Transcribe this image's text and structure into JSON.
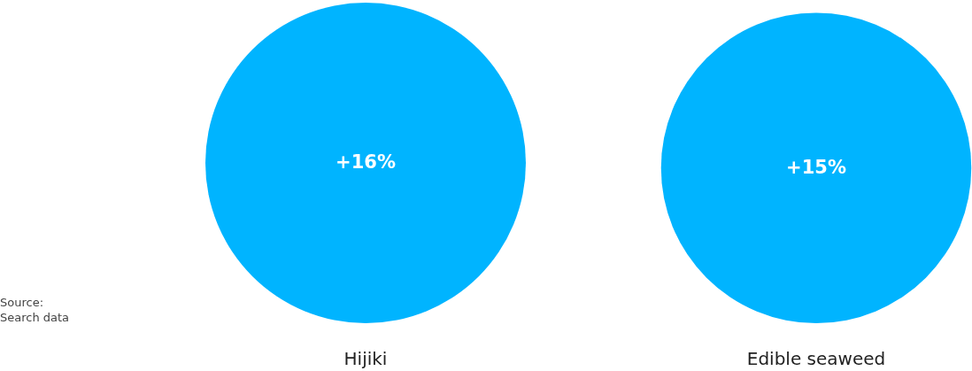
{
  "chart_data": {
    "type": "other",
    "categories": [
      "Hijiki",
      "Edible seaweed"
    ],
    "values": [
      16,
      15
    ],
    "value_labels": [
      "+16%",
      "+15%"
    ],
    "color": "#00b4ff",
    "annotations": [
      "Source:\nSearch data"
    ]
  }
}
